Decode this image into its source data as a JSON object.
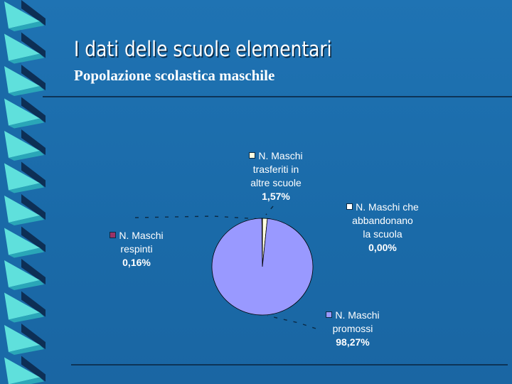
{
  "slide": {
    "title": "I dati delle scuole elementari",
    "subtitle": "Popolazione scolastica maschile"
  },
  "chart_data": {
    "type": "pie",
    "series": [
      {
        "name": "N. Maschi trasferiti in altre scuole",
        "value": 1.57,
        "label": "1,57%",
        "color": "#ffffe0"
      },
      {
        "name": "N. Maschi che abbandonano la scuola",
        "value": 0.0,
        "label": "0,00%",
        "color": "#ffffff"
      },
      {
        "name": "N. Maschi promossi",
        "value": 98.27,
        "label": "98,27%",
        "color": "#9999ff"
      },
      {
        "name": "N. Maschi respinti",
        "value": 0.16,
        "label": "0,16%",
        "color": "#993366"
      }
    ],
    "legend": "labels beside slices"
  },
  "colors": {
    "background": "#1f73b3",
    "decoration_face": "#5fe0dc",
    "decoration_dark": "#0d2f55"
  }
}
